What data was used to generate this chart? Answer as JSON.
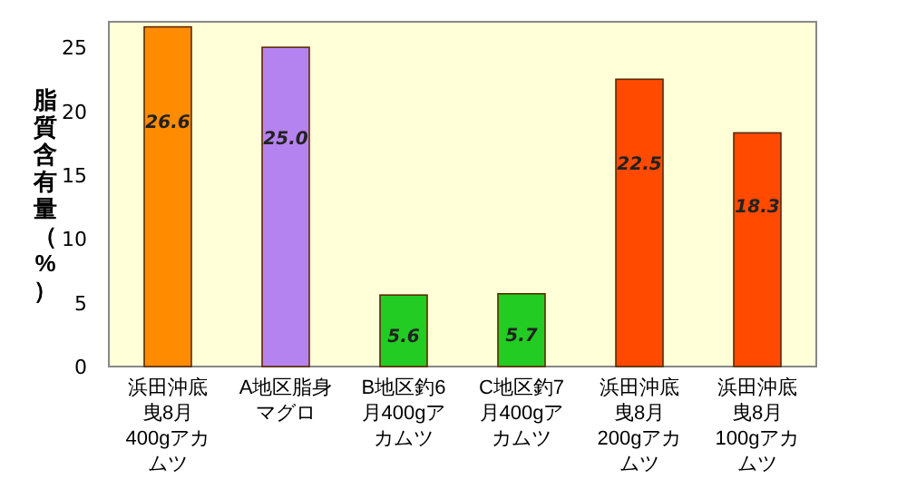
{
  "chart_data": {
    "type": "bar",
    "ylabel": "脂質含有量（%）",
    "categories": [
      "浜田沖底曳8月400gアカムツ",
      "A地区脂身マグロ",
      "B地区釣6月400gアカムツ",
      "C地区釣7月400gアカムツ",
      "浜田沖底曳8月200gアカムツ",
      "浜田沖底曳8月100gアカムツ"
    ],
    "values": [
      26.6,
      25.0,
      5.6,
      5.7,
      22.5,
      18.3
    ],
    "value_labels": [
      "26.6",
      "25.0",
      "5.6",
      "5.7",
      "22.5",
      "18.3"
    ],
    "colors": [
      "#ff8c00",
      "#b583ef",
      "#22cc22",
      "#22cc22",
      "#ff4a00",
      "#ff4a00"
    ],
    "ylim": [
      0,
      27
    ],
    "yticks": [
      0,
      5,
      10,
      15,
      20,
      25
    ]
  }
}
